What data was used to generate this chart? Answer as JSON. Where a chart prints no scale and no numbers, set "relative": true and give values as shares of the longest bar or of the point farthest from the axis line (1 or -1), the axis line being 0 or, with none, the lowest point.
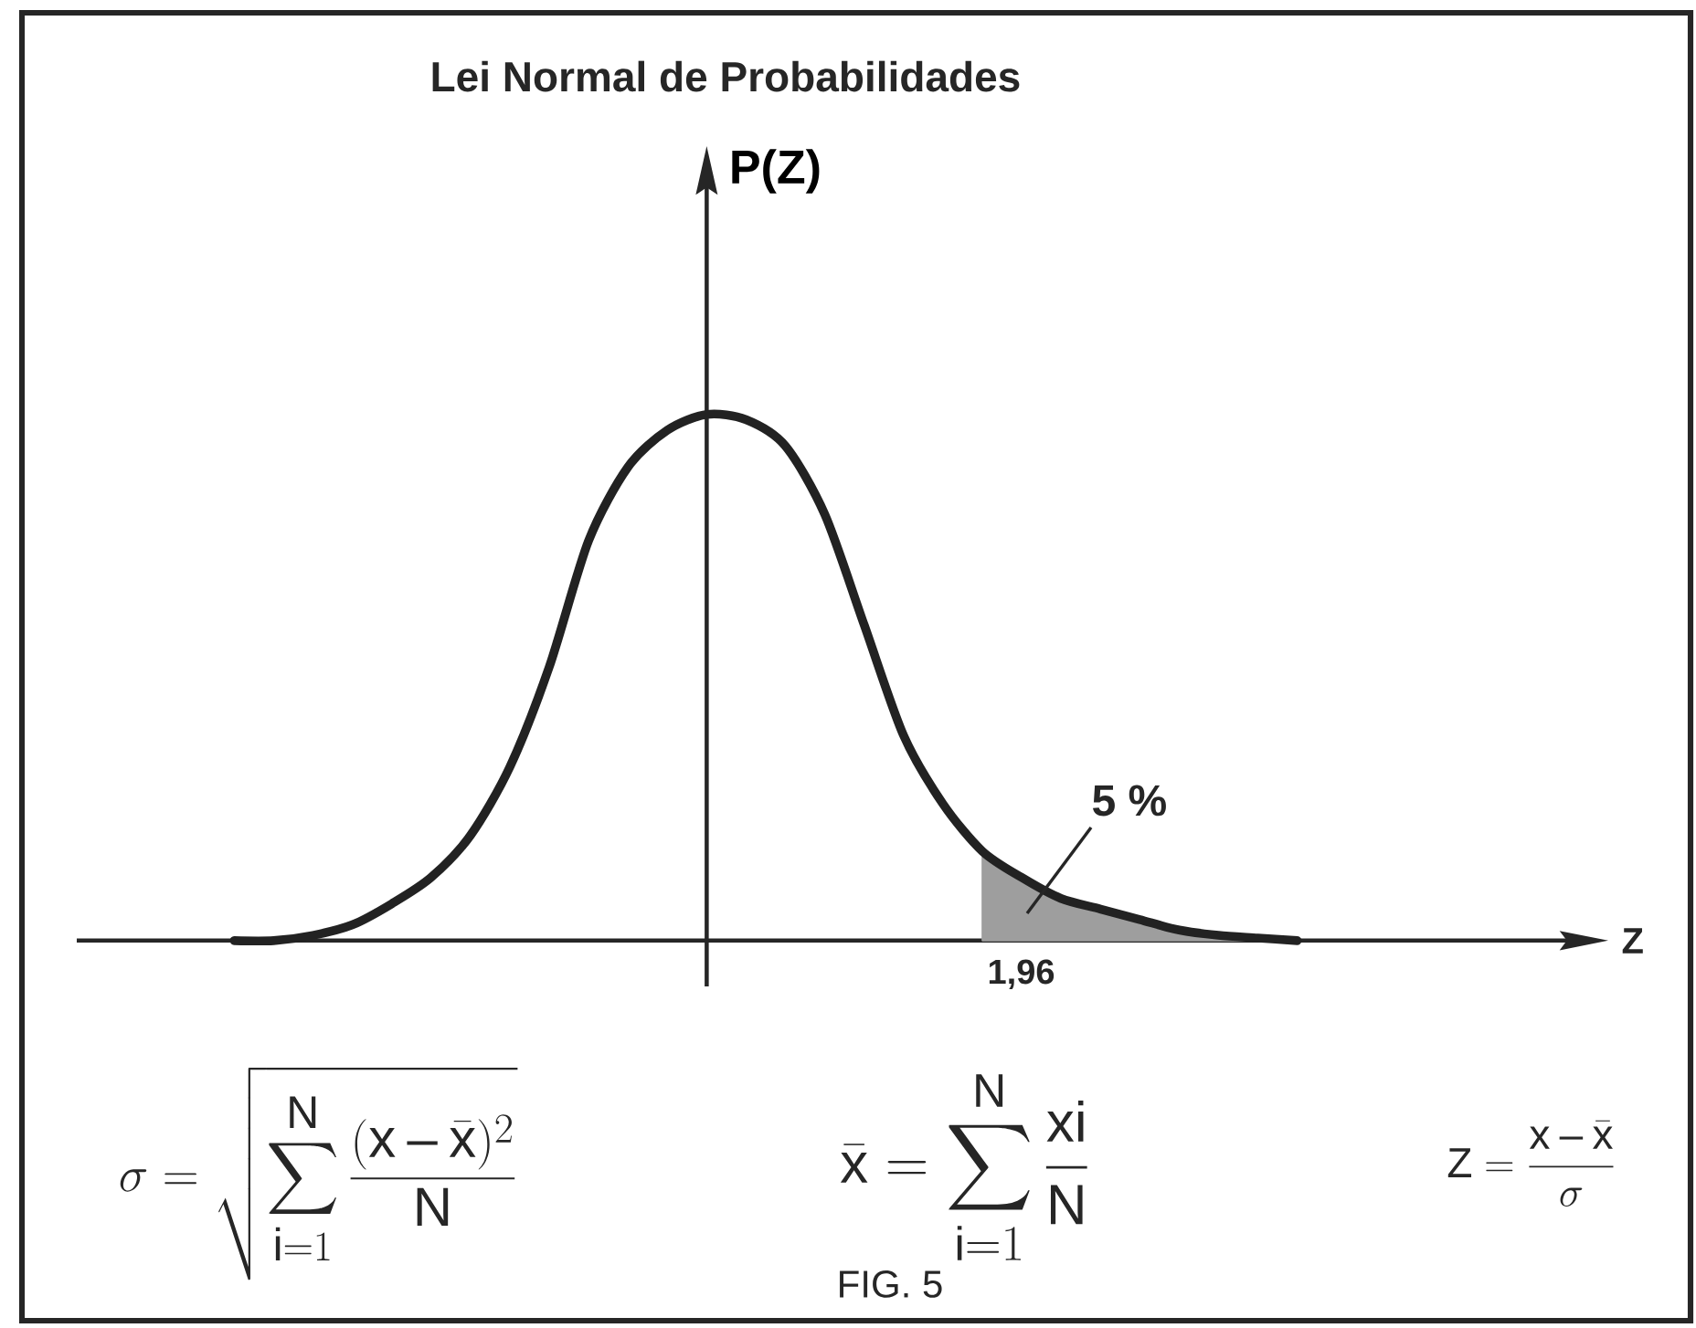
{
  "chart_data": {
    "type": "line",
    "title": "Lei Normal de Probabilidades",
    "ylabel": "P(Z)",
    "relative": true,
    "categories": [
      null,
      null,
      null,
      null,
      null,
      null,
      null,
      null,
      null,
      null,
      null,
      null,
      null,
      null,
      null,
      null,
      null,
      null,
      null,
      null,
      null,
      null,
      null,
      null,
      null,
      null,
      null,
      null
    ],
    "series": [
      {
        "color": "#222222",
        "values": [
          0,
          0,
          0.01,
          0.03,
          0.07,
          0.12,
          0.2,
          0.33,
          0.52,
          0.76,
          0.9,
          0.97,
          1,
          0.99,
          0.94,
          0.81,
          0.6,
          0.39,
          0.26,
          0.17,
          0.12,
          0.08,
          0.06,
          0.04,
          0.02,
          0.01,
          0.005,
          0
        ]
      },
      {
        "type": "area",
        "color": "#9e9e9e",
        "values": [
          null,
          null,
          null,
          null,
          null,
          null,
          null,
          null,
          null,
          null,
          null,
          null,
          null,
          null,
          null,
          null,
          null,
          null,
          null,
          0.17,
          0.12,
          0.08,
          0.06,
          0.04,
          0.02,
          0.01,
          0.005,
          0
        ]
      }
    ],
    "annotations": [
      "\\sigma = \\sqrt{\\sum_{i=1}^{N} \\frac{(x-\\bar{x})^{2}}{N}}",
      "\\bar{x} = \\sum_{i=1}^{N} \\frac{xi}{N}",
      "Z = \\frac{x-\\bar{x}}{\\sigma}",
      "FIG. 5",
      "5 %",
      "1,96",
      "Z"
    ]
  }
}
